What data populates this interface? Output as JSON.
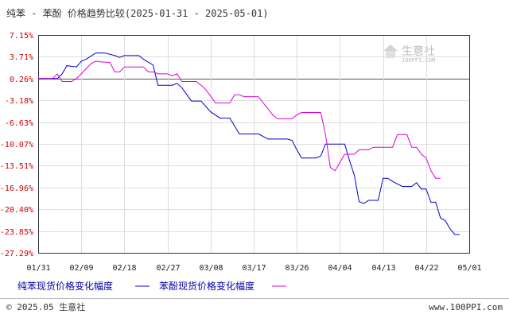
{
  "chart_data": {
    "type": "line",
    "title": "纯苯 - 苯酚 价格趋势比较(2025-01-31 - 2025-05-01)",
    "x_ticks": [
      "01/31",
      "02/09",
      "02/18",
      "02/27",
      "03/08",
      "03/17",
      "03/26",
      "04/04",
      "04/13",
      "04/22",
      "05/01"
    ],
    "y_ticks": [
      "7.15%",
      "3.71%",
      "0.26%",
      "-3.18%",
      "-6.63%",
      "-10.07%",
      "-13.51%",
      "-16.96%",
      "-20.40%",
      "-23.85%",
      "-27.29%"
    ],
    "ylim": [
      -27.29,
      7.15
    ],
    "x_range_days": [
      0,
      90
    ],
    "grid": true,
    "legend_placement": "bottom",
    "series": [
      {
        "name": "纯苯现货价格变化幅度",
        "color": "#0000cc",
        "points": [
          [
            0,
            0.26
          ],
          [
            4,
            0.26
          ],
          [
            5,
            1.0
          ],
          [
            6,
            2.3
          ],
          [
            8,
            2.1
          ],
          [
            9,
            3.0
          ],
          [
            10,
            3.3
          ],
          [
            11,
            3.8
          ],
          [
            12,
            4.3
          ],
          [
            14,
            4.3
          ],
          [
            16,
            3.9
          ],
          [
            17,
            3.6
          ],
          [
            18,
            3.9
          ],
          [
            21,
            3.9
          ],
          [
            22,
            3.3
          ],
          [
            24,
            2.4
          ],
          [
            25,
            -0.8
          ],
          [
            28,
            -0.8
          ],
          [
            29,
            -0.5
          ],
          [
            30,
            -1.2
          ],
          [
            32,
            -3.3
          ],
          [
            34,
            -3.3
          ],
          [
            36,
            -5.0
          ],
          [
            38,
            -6.0
          ],
          [
            40,
            -6.0
          ],
          [
            41,
            -7.2
          ],
          [
            42,
            -8.5
          ],
          [
            43,
            -8.5
          ],
          [
            46,
            -8.5
          ],
          [
            48,
            -9.3
          ],
          [
            52,
            -9.3
          ],
          [
            53,
            -9.5
          ],
          [
            54,
            -11.0
          ],
          [
            55,
            -12.3
          ],
          [
            58,
            -12.3
          ],
          [
            59,
            -12.0
          ],
          [
            60,
            -10.1
          ],
          [
            63,
            -10.1
          ],
          [
            64,
            -10.1
          ],
          [
            65,
            -12.7
          ],
          [
            66,
            -15.0
          ],
          [
            67,
            -19.2
          ],
          [
            68,
            -19.5
          ],
          [
            69,
            -19.0
          ],
          [
            71,
            -19.0
          ],
          [
            72,
            -15.5
          ],
          [
            73,
            -15.5
          ],
          [
            74,
            -16.0
          ],
          [
            76,
            -16.8
          ],
          [
            78,
            -16.8
          ],
          [
            79,
            -16.2
          ],
          [
            80,
            -17.2
          ],
          [
            81,
            -17.2
          ],
          [
            82,
            -19.3
          ],
          [
            83,
            -19.3
          ],
          [
            84,
            -21.8
          ],
          [
            85,
            -22.2
          ],
          [
            86,
            -23.5
          ],
          [
            87,
            -24.4
          ],
          [
            88,
            -24.4
          ]
        ]
      },
      {
        "name": "苯酚现货价格变化幅度",
        "color": "#dd00dd",
        "points": [
          [
            0,
            0.26
          ],
          [
            3,
            0.26
          ],
          [
            4,
            1.0
          ],
          [
            5,
            -0.2
          ],
          [
            7,
            -0.2
          ],
          [
            8,
            0.3
          ],
          [
            9,
            1.0
          ],
          [
            10,
            1.8
          ],
          [
            11,
            2.6
          ],
          [
            12,
            3.0
          ],
          [
            13,
            2.9
          ],
          [
            15,
            2.8
          ],
          [
            16,
            1.3
          ],
          [
            17,
            1.3
          ],
          [
            18,
            2.1
          ],
          [
            22,
            2.1
          ],
          [
            23,
            1.3
          ],
          [
            24,
            1.3
          ],
          [
            25,
            1.0
          ],
          [
            27,
            1.0
          ],
          [
            28,
            0.7
          ],
          [
            29,
            1.0
          ],
          [
            30,
            -0.2
          ],
          [
            33,
            -0.2
          ],
          [
            34,
            -0.8
          ],
          [
            35,
            -1.5
          ],
          [
            36,
            -2.5
          ],
          [
            37,
            -3.6
          ],
          [
            38,
            -3.6
          ],
          [
            40,
            -3.6
          ],
          [
            41,
            -2.3
          ],
          [
            42,
            -2.3
          ],
          [
            43,
            -2.6
          ],
          [
            46,
            -2.6
          ],
          [
            47,
            -3.6
          ],
          [
            49,
            -5.5
          ],
          [
            50,
            -6.1
          ],
          [
            53,
            -6.1
          ],
          [
            54,
            -5.5
          ],
          [
            55,
            -5.1
          ],
          [
            59,
            -5.1
          ],
          [
            60,
            -8.6
          ],
          [
            61,
            -13.8
          ],
          [
            62,
            -14.3
          ],
          [
            63,
            -13.0
          ],
          [
            64,
            -11.7
          ],
          [
            66,
            -11.7
          ],
          [
            67,
            -11.0
          ],
          [
            69,
            -11.0
          ],
          [
            70,
            -10.6
          ],
          [
            74,
            -10.6
          ],
          [
            75,
            -8.6
          ],
          [
            77,
            -8.6
          ],
          [
            78,
            -10.6
          ],
          [
            79,
            -10.6
          ],
          [
            80,
            -11.7
          ],
          [
            81,
            -12.3
          ],
          [
            82,
            -14.3
          ],
          [
            83,
            -15.5
          ],
          [
            84,
            -15.5
          ]
        ]
      }
    ]
  },
  "watermark": {
    "name": "生意社",
    "sub": "100PPI.COM"
  },
  "footer": {
    "left": "© 2025.05 生意社",
    "right": "www.100PPI.com"
  }
}
